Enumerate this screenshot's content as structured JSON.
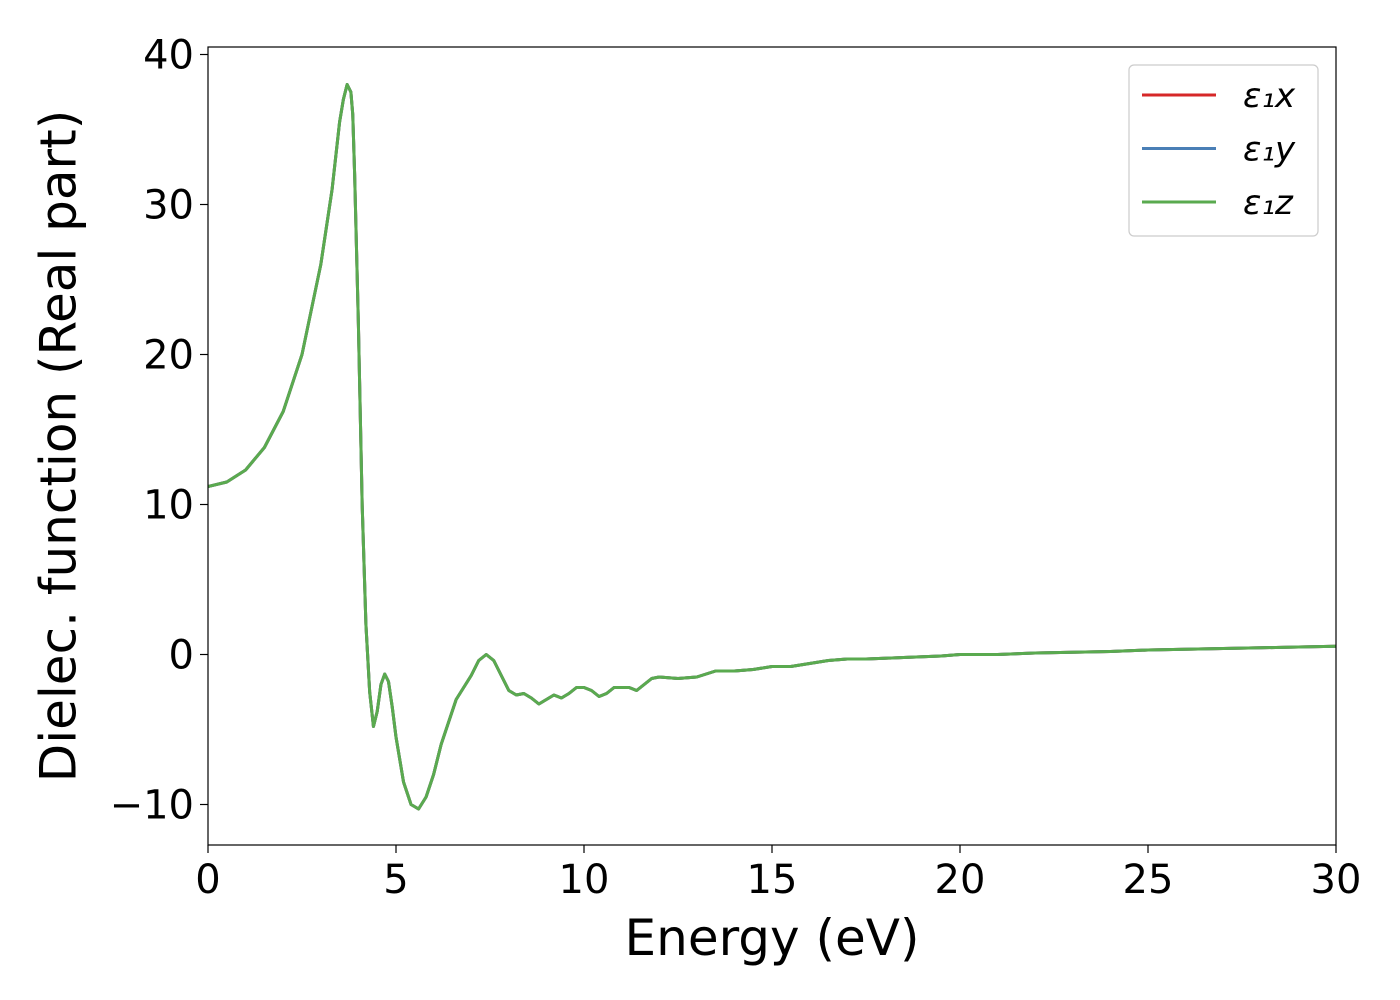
{
  "chart_data": {
    "type": "line",
    "title": "",
    "xlabel": "Energy (eV)",
    "ylabel": "Dielec. function (Real part)",
    "xlim": [
      0,
      30
    ],
    "ylim": [
      -12.7,
      40.5
    ],
    "xticks": [
      0,
      5,
      10,
      15,
      20,
      25,
      30
    ],
    "xtick_labels": [
      "0",
      "5",
      "10",
      "15",
      "20",
      "25",
      "30"
    ],
    "yticks": [
      -10,
      0,
      10,
      20,
      30,
      40
    ],
    "ytick_labels": [
      "−10",
      "0",
      "10",
      "20",
      "30",
      "40"
    ],
    "grid": false,
    "legend": {
      "position": "top-right"
    },
    "series": [
      {
        "name": "ε₁x",
        "color": "#d62728",
        "x": [
          0.0,
          0.5,
          1.0,
          1.5,
          2.0,
          2.5,
          3.0,
          3.3,
          3.5,
          3.6,
          3.7,
          3.8,
          3.85,
          3.9,
          4.0,
          4.1,
          4.2,
          4.3,
          4.4,
          4.5,
          4.6,
          4.7,
          4.8,
          4.9,
          5.0,
          5.2,
          5.4,
          5.6,
          5.8,
          6.0,
          6.2,
          6.4,
          6.6,
          6.8,
          7.0,
          7.2,
          7.4,
          7.6,
          7.8,
          8.0,
          8.2,
          8.4,
          8.6,
          8.8,
          9.0,
          9.2,
          9.4,
          9.6,
          9.8,
          10.0,
          10.2,
          10.4,
          10.6,
          10.8,
          11.0,
          11.2,
          11.4,
          11.6,
          11.8,
          12.0,
          12.5,
          13.0,
          13.5,
          14.0,
          14.5,
          15.0,
          15.5,
          16.0,
          16.5,
          17.0,
          17.5,
          18.0,
          18.5,
          19.0,
          19.5,
          20.0,
          21.0,
          22.0,
          23.0,
          24.0,
          25.0,
          26.0,
          27.0,
          28.0,
          29.0,
          30.0
        ],
        "y": [
          11.2,
          11.5,
          12.3,
          13.8,
          16.2,
          20.0,
          26.0,
          31.0,
          35.5,
          37.0,
          38.0,
          37.5,
          36.0,
          32.0,
          22.0,
          10.0,
          2.0,
          -2.5,
          -4.8,
          -3.8,
          -2.0,
          -1.3,
          -1.8,
          -3.5,
          -5.5,
          -8.5,
          -10.0,
          -10.3,
          -9.5,
          -8.0,
          -6.0,
          -4.5,
          -3.0,
          -2.2,
          -1.4,
          -0.4,
          0.0,
          -0.4,
          -1.4,
          -2.4,
          -2.7,
          -2.6,
          -2.9,
          -3.3,
          -3.0,
          -2.7,
          -2.9,
          -2.6,
          -2.2,
          -2.2,
          -2.4,
          -2.8,
          -2.6,
          -2.2,
          -2.2,
          -2.2,
          -2.4,
          -2.0,
          -1.6,
          -1.5,
          -1.6,
          -1.5,
          -1.1,
          -1.1,
          -1.0,
          -0.8,
          -0.8,
          -0.6,
          -0.4,
          -0.3,
          -0.3,
          -0.25,
          -0.2,
          -0.15,
          -0.1,
          0.0,
          0.0,
          0.1,
          0.15,
          0.2,
          0.3,
          0.35,
          0.4,
          0.45,
          0.5,
          0.55
        ]
      },
      {
        "name": "ε₁y",
        "color": "#4a7fb6",
        "x": [
          0.0,
          0.5,
          1.0,
          1.5,
          2.0,
          2.5,
          3.0,
          3.3,
          3.5,
          3.6,
          3.7,
          3.8,
          3.85,
          3.9,
          4.0,
          4.1,
          4.2,
          4.3,
          4.4,
          4.5,
          4.6,
          4.7,
          4.8,
          4.9,
          5.0,
          5.2,
          5.4,
          5.6,
          5.8,
          6.0,
          6.2,
          6.4,
          6.6,
          6.8,
          7.0,
          7.2,
          7.4,
          7.6,
          7.8,
          8.0,
          8.2,
          8.4,
          8.6,
          8.8,
          9.0,
          9.2,
          9.4,
          9.6,
          9.8,
          10.0,
          10.2,
          10.4,
          10.6,
          10.8,
          11.0,
          11.2,
          11.4,
          11.6,
          11.8,
          12.0,
          12.5,
          13.0,
          13.5,
          14.0,
          14.5,
          15.0,
          15.5,
          16.0,
          16.5,
          17.0,
          17.5,
          18.0,
          18.5,
          19.0,
          19.5,
          20.0,
          21.0,
          22.0,
          23.0,
          24.0,
          25.0,
          26.0,
          27.0,
          28.0,
          29.0,
          30.0
        ],
        "y": [
          11.2,
          11.5,
          12.3,
          13.8,
          16.2,
          20.0,
          26.0,
          31.0,
          35.5,
          37.0,
          38.0,
          37.5,
          36.0,
          32.0,
          22.0,
          10.0,
          2.0,
          -2.5,
          -4.8,
          -3.8,
          -2.0,
          -1.3,
          -1.8,
          -3.5,
          -5.5,
          -8.5,
          -10.0,
          -10.3,
          -9.5,
          -8.0,
          -6.0,
          -4.5,
          -3.0,
          -2.2,
          -1.4,
          -0.4,
          0.0,
          -0.4,
          -1.4,
          -2.4,
          -2.7,
          -2.6,
          -2.9,
          -3.3,
          -3.0,
          -2.7,
          -2.9,
          -2.6,
          -2.2,
          -2.2,
          -2.4,
          -2.8,
          -2.6,
          -2.2,
          -2.2,
          -2.2,
          -2.4,
          -2.0,
          -1.6,
          -1.5,
          -1.6,
          -1.5,
          -1.1,
          -1.1,
          -1.0,
          -0.8,
          -0.8,
          -0.6,
          -0.4,
          -0.3,
          -0.3,
          -0.25,
          -0.2,
          -0.15,
          -0.1,
          0.0,
          0.0,
          0.1,
          0.15,
          0.2,
          0.3,
          0.35,
          0.4,
          0.45,
          0.5,
          0.55
        ]
      },
      {
        "name": "ε₁z",
        "color": "#5aaa4f",
        "x": [
          0.0,
          0.5,
          1.0,
          1.5,
          2.0,
          2.5,
          3.0,
          3.3,
          3.5,
          3.6,
          3.7,
          3.8,
          3.85,
          3.9,
          4.0,
          4.1,
          4.2,
          4.3,
          4.4,
          4.5,
          4.6,
          4.7,
          4.8,
          4.9,
          5.0,
          5.2,
          5.4,
          5.6,
          5.8,
          6.0,
          6.2,
          6.4,
          6.6,
          6.8,
          7.0,
          7.2,
          7.4,
          7.6,
          7.8,
          8.0,
          8.2,
          8.4,
          8.6,
          8.8,
          9.0,
          9.2,
          9.4,
          9.6,
          9.8,
          10.0,
          10.2,
          10.4,
          10.6,
          10.8,
          11.0,
          11.2,
          11.4,
          11.6,
          11.8,
          12.0,
          12.5,
          13.0,
          13.5,
          14.0,
          14.5,
          15.0,
          15.5,
          16.0,
          16.5,
          17.0,
          17.5,
          18.0,
          18.5,
          19.0,
          19.5,
          20.0,
          21.0,
          22.0,
          23.0,
          24.0,
          25.0,
          26.0,
          27.0,
          28.0,
          29.0,
          30.0
        ],
        "y": [
          11.2,
          11.5,
          12.3,
          13.8,
          16.2,
          20.0,
          26.0,
          31.0,
          35.5,
          37.0,
          38.0,
          37.5,
          36.0,
          32.0,
          22.0,
          10.0,
          2.0,
          -2.5,
          -4.8,
          -3.8,
          -2.0,
          -1.3,
          -1.8,
          -3.5,
          -5.5,
          -8.5,
          -10.0,
          -10.3,
          -9.5,
          -8.0,
          -6.0,
          -4.5,
          -3.0,
          -2.2,
          -1.4,
          -0.4,
          0.0,
          -0.4,
          -1.4,
          -2.4,
          -2.7,
          -2.6,
          -2.9,
          -3.3,
          -3.0,
          -2.7,
          -2.9,
          -2.6,
          -2.2,
          -2.2,
          -2.4,
          -2.8,
          -2.6,
          -2.2,
          -2.2,
          -2.2,
          -2.4,
          -2.0,
          -1.6,
          -1.5,
          -1.6,
          -1.5,
          -1.1,
          -1.1,
          -1.0,
          -0.8,
          -0.8,
          -0.6,
          -0.4,
          -0.3,
          -0.3,
          -0.25,
          -0.2,
          -0.15,
          -0.1,
          0.0,
          0.0,
          0.1,
          0.15,
          0.2,
          0.3,
          0.35,
          0.4,
          0.45,
          0.5,
          0.55
        ]
      }
    ]
  }
}
